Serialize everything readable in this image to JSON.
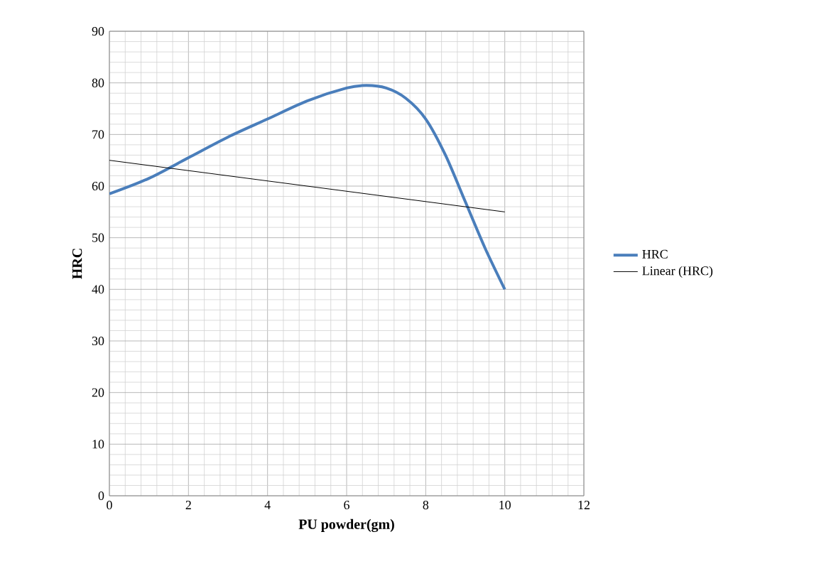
{
  "chart_data": {
    "type": "line",
    "xlabel": "PU powder(gm)",
    "ylabel": "HRC",
    "xlim": [
      0,
      12
    ],
    "xticks": [
      0,
      2,
      4,
      6,
      8,
      10,
      12
    ],
    "ylim": [
      0,
      90
    ],
    "yticks": [
      0,
      10,
      20,
      30,
      40,
      50,
      60,
      70,
      80,
      90
    ],
    "grid": true,
    "legend": "right",
    "marker": "none",
    "series": [
      {
        "name": "HRC",
        "color": "#4a7ebb",
        "x": [
          0,
          1,
          2,
          3,
          4,
          5,
          6,
          6.5,
          7,
          7.5,
          8,
          8.5,
          9,
          9.5,
          10
        ],
        "values": [
          58.5,
          61.5,
          65.5,
          69.5,
          73,
          76.5,
          79,
          79.5,
          79,
          77,
          73,
          66,
          57,
          48,
          40
        ]
      },
      {
        "name": "Linear (HRC)",
        "color": "#000000",
        "x": [
          0,
          10
        ],
        "values": [
          65,
          55
        ]
      }
    ]
  }
}
